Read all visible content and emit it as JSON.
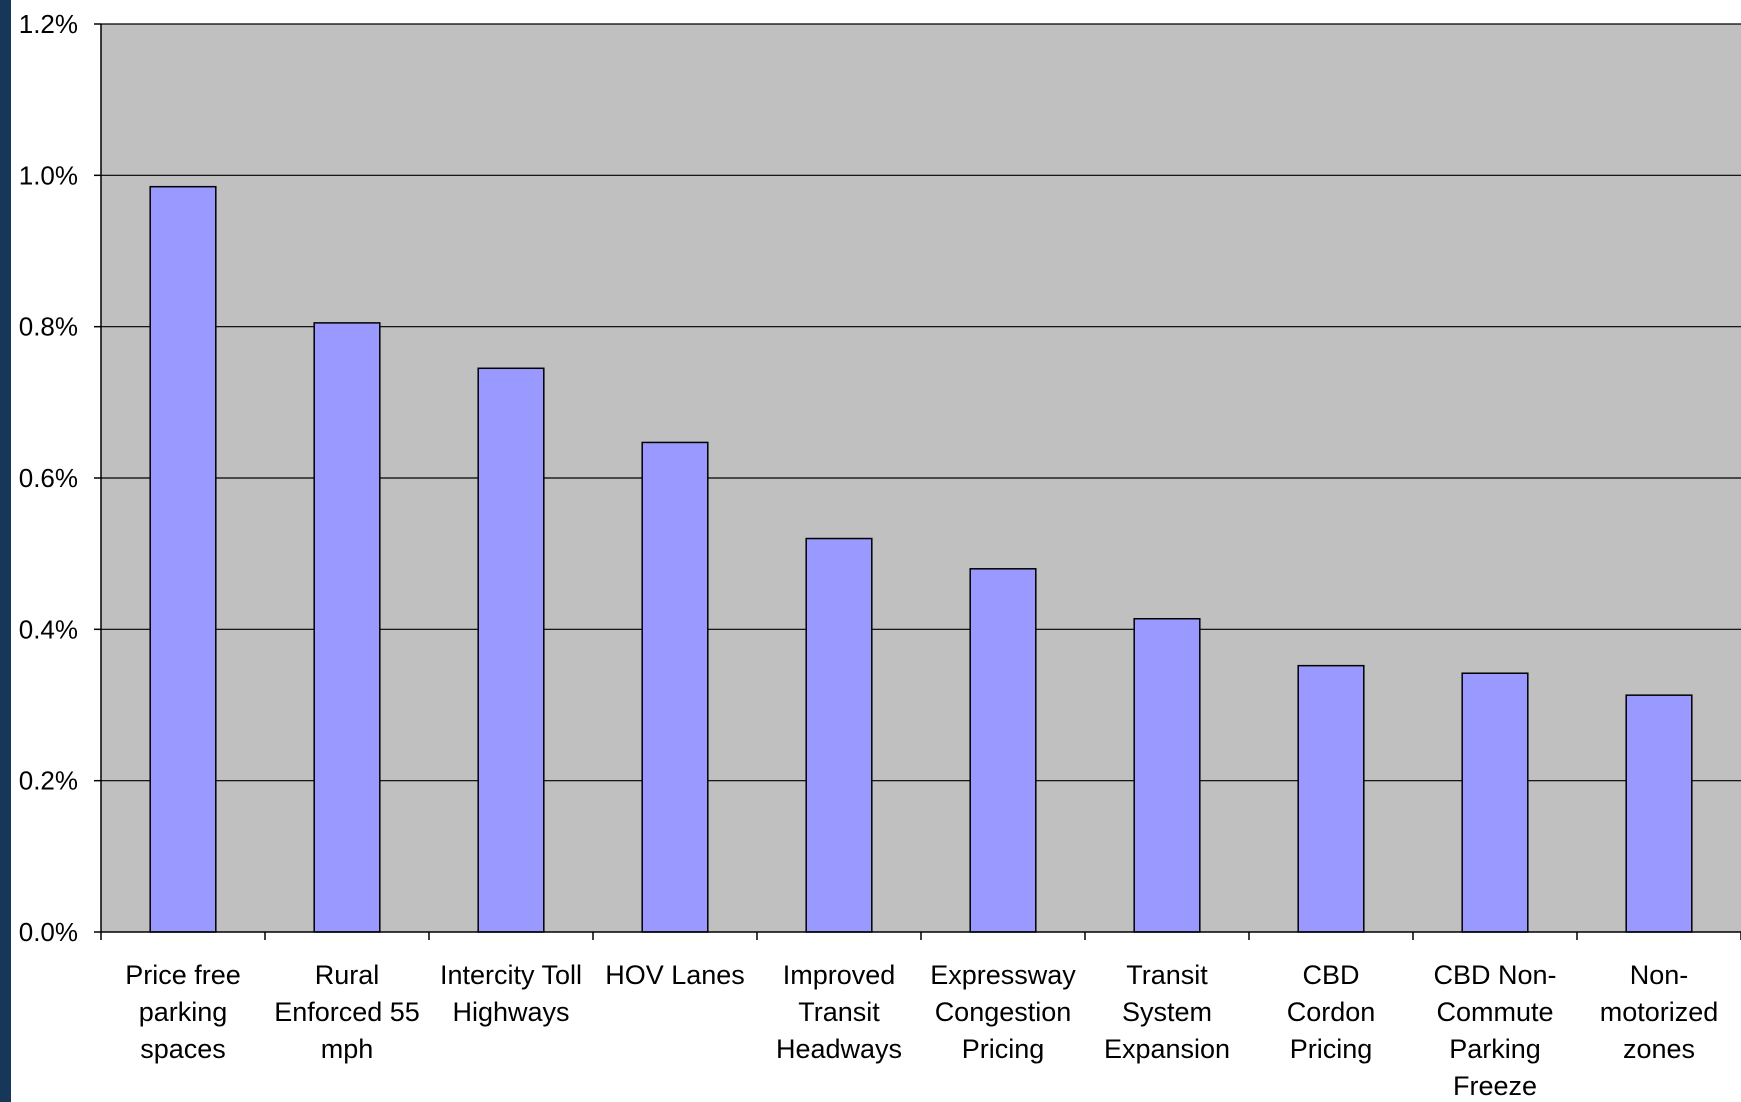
{
  "chart_data": {
    "type": "bar",
    "title": "",
    "xlabel": "",
    "ylabel": "",
    "ylim": [
      0,
      0.012
    ],
    "yticks": [
      0,
      0.002,
      0.004,
      0.006,
      0.008,
      0.01,
      0.012
    ],
    "ytick_labels": [
      "0.0%",
      "0.2%",
      "0.4%",
      "0.6%",
      "0.8%",
      "1.0%",
      "1.2%"
    ],
    "grid": true,
    "legend": "none",
    "categories": [
      [
        "Price free",
        "parking",
        "spaces"
      ],
      [
        "Rural",
        "Enforced 55",
        "mph"
      ],
      [
        "Intercity Toll",
        "Highways"
      ],
      [
        "HOV Lanes"
      ],
      [
        "Improved",
        "Transit",
        "Headways"
      ],
      [
        "Expressway",
        "Congestion",
        "Pricing"
      ],
      [
        "Transit",
        "System",
        "Expansion"
      ],
      [
        "CBD",
        "Cordon",
        "Pricing"
      ],
      [
        "CBD Non-",
        "Commute",
        "Parking",
        "Freeze"
      ],
      [
        "Non-",
        "motorized",
        "zones"
      ]
    ],
    "values": [
      0.00985,
      0.00805,
      0.00745,
      0.00647,
      0.0052,
      0.0048,
      0.00414,
      0.00352,
      0.00342,
      0.00313
    ],
    "colors": {
      "bar_fill": "#9999ff",
      "bar_stroke": "#000000",
      "plot_bg": "#c0c0c0",
      "grid": "#000000",
      "left_edge": "#16365a"
    }
  }
}
